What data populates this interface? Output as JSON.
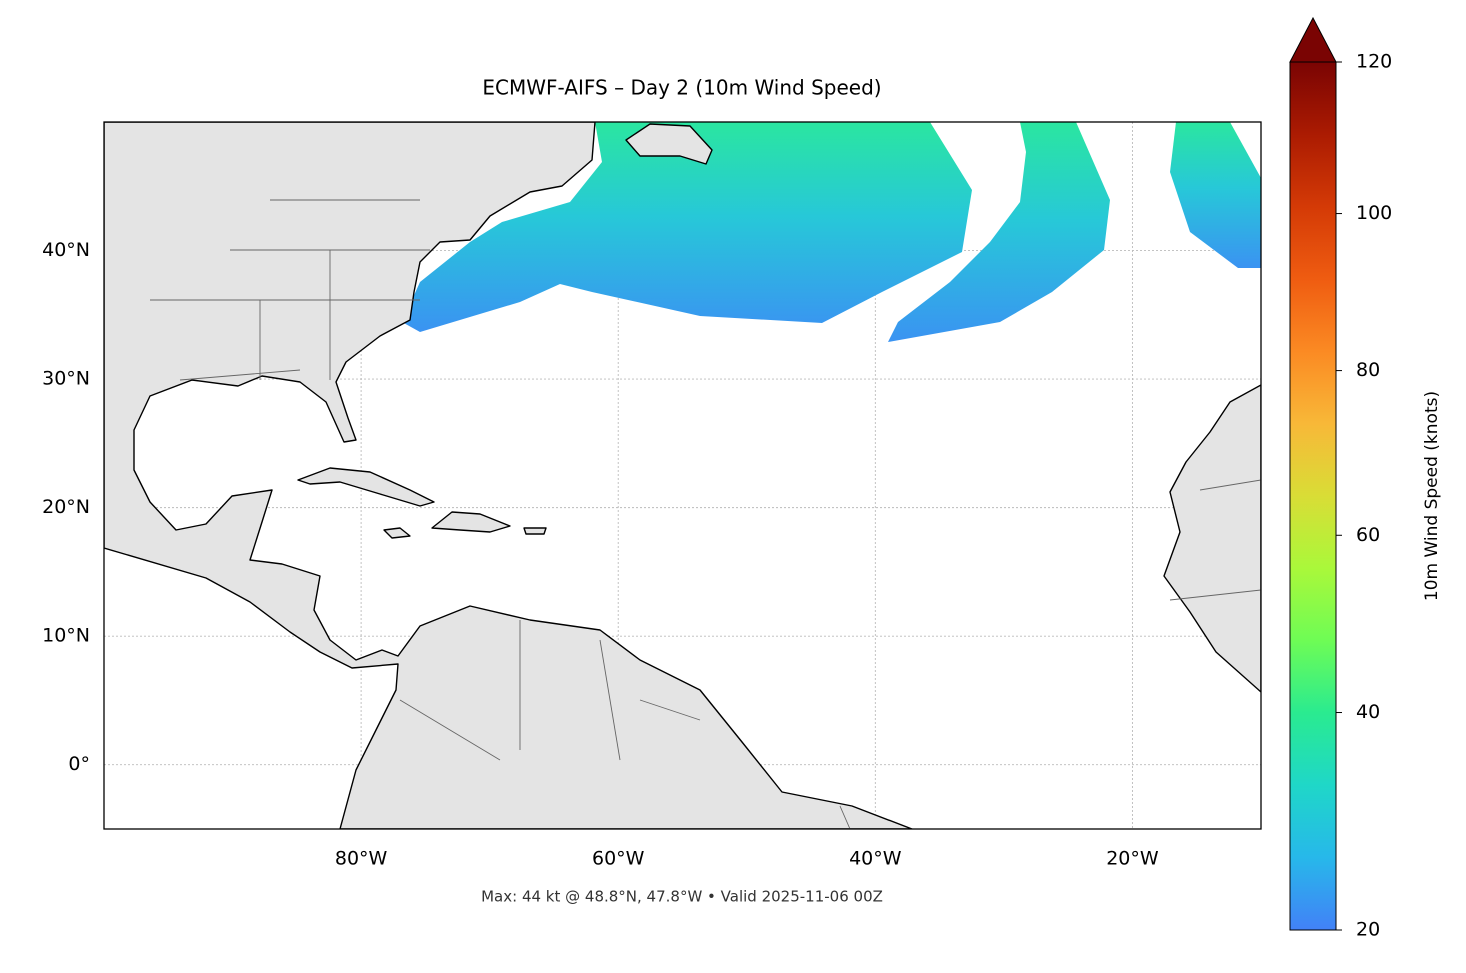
{
  "chart_data": {
    "type": "map",
    "title": "ECMWF-AIFS – Day 2 (10m Wind Speed)",
    "subtitle": "Max: 44 kt @ 48.8°N, 47.8°W • Valid 2025-11-06 00Z",
    "xlim": [
      -100,
      -10
    ],
    "ylim": [
      -5,
      50
    ],
    "xticks": [
      {
        "value": -80,
        "label": "80°W"
      },
      {
        "value": -60,
        "label": "60°W"
      },
      {
        "value": -40,
        "label": "40°W"
      },
      {
        "value": -20,
        "label": "20°W"
      }
    ],
    "yticks": [
      {
        "value": 0,
        "label": "0°"
      },
      {
        "value": 10,
        "label": "10°N"
      },
      {
        "value": 20,
        "label": "20°N"
      },
      {
        "value": 30,
        "label": "30°N"
      },
      {
        "value": 40,
        "label": "40°N"
      }
    ],
    "grid": true,
    "colorbar": {
      "label": "10m Wind Speed (knots)",
      "clim": [
        20,
        120
      ],
      "ticks": [
        20,
        40,
        60,
        80,
        100,
        120
      ],
      "colormap": "turbo",
      "extend": "max",
      "norm": "power",
      "gamma": 0.86
    }
  }
}
